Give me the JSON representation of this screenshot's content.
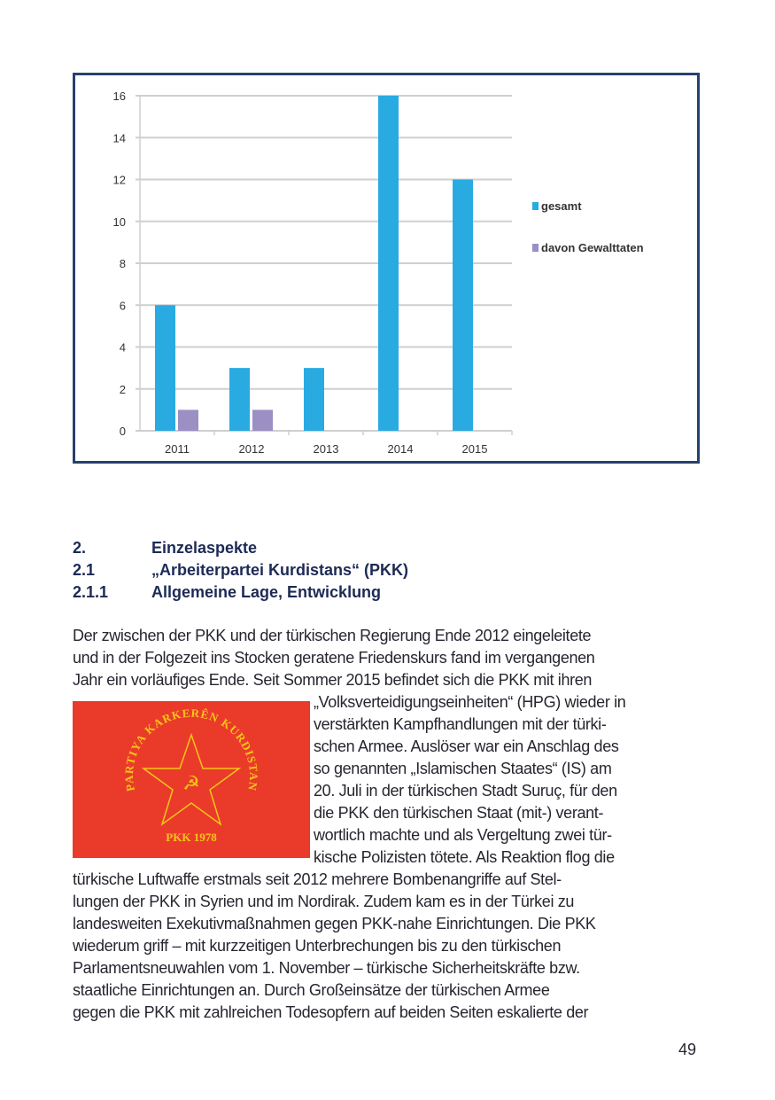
{
  "chart_data": {
    "type": "bar",
    "categories": [
      "2011",
      "2012",
      "2013",
      "2014",
      "2015"
    ],
    "series": [
      {
        "name": "gesamt",
        "color": "#29abe2",
        "values": [
          6,
          3,
          3,
          16,
          12
        ]
      },
      {
        "name": "davon Gewalttaten",
        "color": "#9b8fc4",
        "values": [
          1,
          1,
          0,
          0,
          0
        ]
      }
    ],
    "ylim": [
      0,
      16
    ],
    "yticks": [
      0,
      2,
      4,
      6,
      8,
      10,
      12,
      14,
      16
    ],
    "grid": true,
    "legend": "right"
  },
  "headings": [
    {
      "num": "2.",
      "text": "Einzelaspekte"
    },
    {
      "num": "2.1",
      "text": "„Arbeiterpartei Kurdistans“ (PKK)"
    },
    {
      "num": "2.1.1",
      "text": "Allgemeine Lage, Entwicklung"
    }
  ],
  "body_lines": [
    "Der zwischen der PKK und der türkischen Regierung Ende 2012 eingeleitete",
    "und in der Folgezeit ins Stocken geratene Friedenskurs fand im vergangenen",
    "Jahr ein vorläufiges Ende. Seit Sommer 2015 befindet sich die PKK mit ihren",
    "„Volksverteidigungseinheiten“ (HPG) wieder in",
    "verstärkten Kampfhandlungen mit der türki-",
    "schen Armee. Auslöser war ein Anschlag des",
    "so genannten „Islamischen Staates“ (IS) am",
    "20. Juli in der türkischen Stadt Suruç, für den",
    "die PKK den türkischen Staat (mit-) verant-",
    "wortlich machte und als Vergeltung zwei tür-",
    "kische Polizisten tötete. Als Reaktion flog die",
    "türkische Luftwaffe erstmals seit 2012 mehrere Bombenangriffe auf Stel-",
    "lungen der PKK in Syrien und im Nordirak. Zudem kam es in der Türkei zu",
    "landesweiten Exekutivmaßnahmen gegen PKK-nahe Einrichtungen. Die PKK",
    "wiederum griff – mit kurzzeitigen Unterbrechungen bis zu den türkischen",
    "Parlamentsneuwahlen vom 1. November – türkische Sicherheitskräfte bzw.",
    "staatliche Einrichtungen an. Durch Großeinsätze der türkischen Armee",
    "gegen die PKK mit zahlreichen Todesopfern auf beiden Seiten eskalierte der"
  ],
  "flag": {
    "ring_text": "PARTIYA KARKERÊN KURDISTAN",
    "bottom_text": "PKK 1978",
    "color": "#ea3b2a",
    "emblem_color": "#f5c518"
  },
  "page_number": "49"
}
